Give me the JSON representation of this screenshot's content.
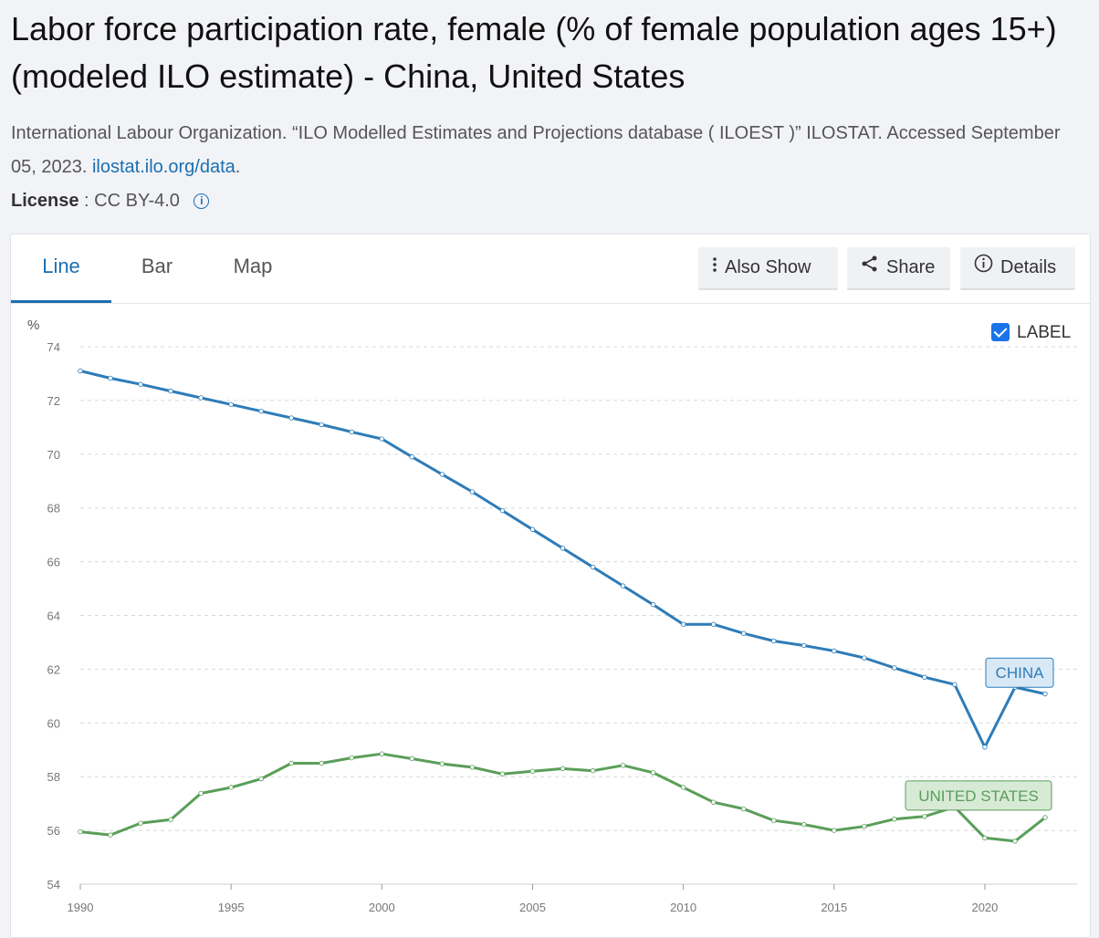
{
  "header": {
    "title": "Labor force participation rate, female (% of female population ages 15+) (modeled ILO estimate) - China, United States",
    "citation_text": "International Labour Organization. “ILO Modelled Estimates and Projections database ( ILOEST )” ILOSTAT. Accessed September 05, 2023.",
    "citation_link": "ilostat.ilo.org/data",
    "citation_end": ".",
    "license_label": "License",
    "license_value": " : CC BY-4.0"
  },
  "tabs": [
    {
      "label": "Line",
      "active": true
    },
    {
      "label": "Bar",
      "active": false
    },
    {
      "label": "Map",
      "active": false
    }
  ],
  "toolbar": {
    "also_show": "Also Show",
    "share": "Share",
    "details": "Details"
  },
  "label_toggle": {
    "text": "LABEL",
    "checked": true
  },
  "chart_data": {
    "type": "line",
    "ylabel": "%",
    "ylim": [
      54,
      74
    ],
    "yticks": [
      54,
      56,
      58,
      60,
      62,
      64,
      66,
      68,
      70,
      72,
      74
    ],
    "xlim": [
      1990,
      2022
    ],
    "xticks": [
      1990,
      1995,
      2000,
      2005,
      2010,
      2015,
      2020
    ],
    "grid": true,
    "x": [
      1990,
      1991,
      1992,
      1993,
      1994,
      1995,
      1996,
      1997,
      1998,
      1999,
      2000,
      2001,
      2002,
      2003,
      2004,
      2005,
      2006,
      2007,
      2008,
      2009,
      2010,
      2011,
      2012,
      2013,
      2014,
      2015,
      2016,
      2017,
      2018,
      2019,
      2020,
      2021,
      2022
    ],
    "series": [
      {
        "name": "CHINA",
        "color": "#2e7cb8",
        "label_bg": "#d9e8f5",
        "values": [
          73.1,
          72.83,
          72.6,
          72.35,
          72.1,
          71.85,
          71.6,
          71.35,
          71.1,
          70.83,
          70.57,
          69.9,
          69.25,
          68.6,
          67.9,
          67.2,
          66.5,
          65.8,
          65.1,
          64.4,
          63.67,
          63.67,
          63.33,
          63.05,
          62.88,
          62.68,
          62.42,
          62.05,
          61.7,
          61.43,
          59.1,
          61.33,
          61.08
        ]
      },
      {
        "name": "UNITED STATES",
        "color": "#5a9e5a",
        "label_bg": "#d7ead5",
        "values": [
          55.95,
          55.83,
          56.27,
          56.4,
          57.38,
          57.6,
          57.92,
          58.5,
          58.5,
          58.7,
          58.85,
          58.67,
          58.48,
          58.35,
          58.1,
          58.2,
          58.3,
          58.22,
          58.42,
          58.15,
          57.6,
          57.05,
          56.8,
          56.37,
          56.22,
          56.0,
          56.15,
          56.42,
          56.52,
          56.87,
          55.72,
          55.6,
          56.48
        ]
      }
    ]
  }
}
